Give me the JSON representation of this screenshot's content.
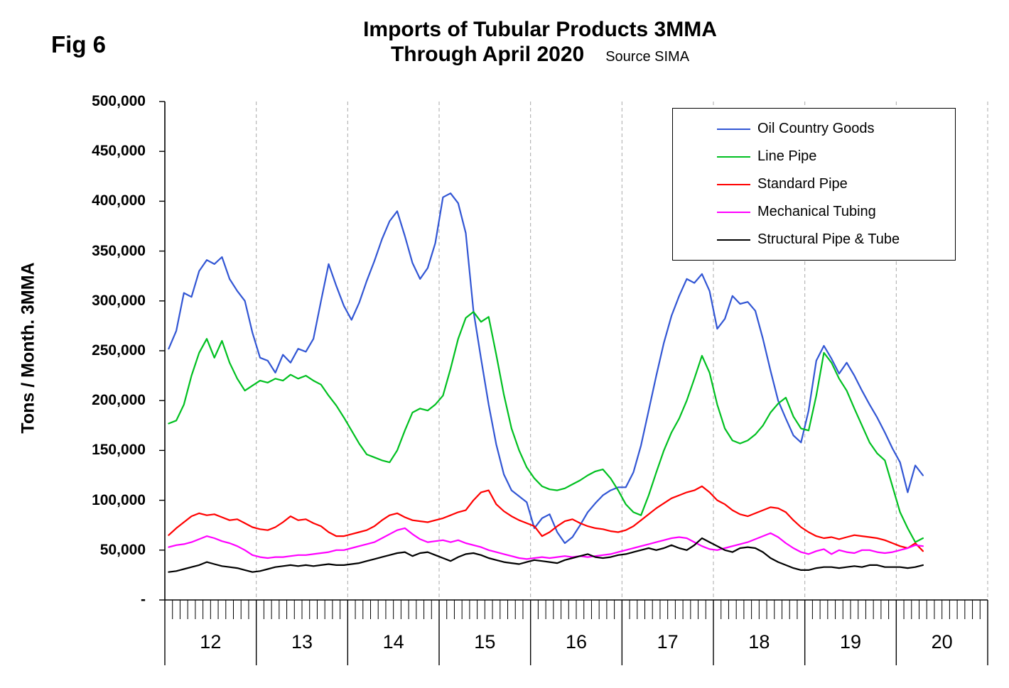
{
  "fig_label": "Fig 6",
  "title": {
    "line1": "Imports of Tubular Products 3MMA",
    "line2": "Through April 2020",
    "source": "Source SIMA"
  },
  "y_axis": {
    "title": "Tons / Month. 3MMA",
    "tick_labels": [
      "500,000",
      "450,000",
      "400,000",
      "350,000",
      "300,000",
      "250,000",
      "200,000",
      "150,000",
      "100,000",
      "50,000",
      "-"
    ]
  },
  "x_axis": {
    "year_labels": [
      "12",
      "13",
      "14",
      "15",
      "16",
      "17",
      "18",
      "19",
      "20"
    ],
    "months_span": 108,
    "data_months": 100
  },
  "legend": {
    "position": "top-right"
  },
  "chart_data": {
    "type": "line",
    "title": "Imports of Tubular Products 3MMA Through April 2020",
    "x_unit": "month",
    "x_start": "2012-01",
    "x_end": "2020-04",
    "ylabel": "Tons / Month. 3MMA",
    "ylim": [
      0,
      500000
    ],
    "grid": "vertical-yearly-dashed",
    "series": [
      {
        "id": "oil-country-goods",
        "name": "Oil Country Goods",
        "color": "#3256D4",
        "values": [
          252000,
          270000,
          308000,
          304000,
          330000,
          341000,
          337000,
          344000,
          322000,
          310000,
          300000,
          268000,
          243000,
          240000,
          228000,
          246000,
          238000,
          252000,
          249000,
          262000,
          300000,
          337000,
          315000,
          295000,
          281000,
          298000,
          320000,
          340000,
          362000,
          380000,
          390000,
          365000,
          338000,
          322000,
          333000,
          358000,
          404000,
          408000,
          398000,
          368000,
          290000,
          242000,
          196000,
          156000,
          126000,
          110000,
          104000,
          98000,
          72000,
          82000,
          86000,
          68000,
          57000,
          63000,
          75000,
          88000,
          97000,
          105000,
          110000,
          113000,
          113000,
          128000,
          155000,
          190000,
          225000,
          258000,
          285000,
          305000,
          322000,
          318000,
          327000,
          310000,
          272000,
          282000,
          305000,
          297000,
          299000,
          290000,
          262000,
          230000,
          200000,
          182000,
          165000,
          158000,
          190000,
          240000,
          255000,
          242000,
          227000,
          238000,
          225000,
          210000,
          196000,
          183000,
          168000,
          152000,
          138000,
          108000,
          135000,
          125000
        ]
      },
      {
        "id": "line-pipe",
        "name": "Line Pipe",
        "color": "#00C020",
        "values": [
          177000,
          180000,
          196000,
          225000,
          248000,
          262000,
          243000,
          260000,
          238000,
          222000,
          210000,
          215000,
          220000,
          218000,
          222000,
          220000,
          226000,
          222000,
          225000,
          220000,
          216000,
          205000,
          195000,
          183000,
          170000,
          157000,
          146000,
          143000,
          140000,
          138000,
          150000,
          170000,
          188000,
          192000,
          190000,
          196000,
          205000,
          232000,
          262000,
          283000,
          289000,
          279000,
          284000,
          246000,
          206000,
          172000,
          150000,
          133000,
          122000,
          114000,
          111000,
          110000,
          112000,
          116000,
          120000,
          125000,
          129000,
          131000,
          122000,
          110000,
          96000,
          88000,
          85000,
          105000,
          128000,
          150000,
          168000,
          182000,
          200000,
          222000,
          245000,
          228000,
          196000,
          172000,
          160000,
          157000,
          160000,
          166000,
          175000,
          188000,
          197000,
          203000,
          184000,
          172000,
          170000,
          205000,
          248000,
          238000,
          222000,
          210000,
          192000,
          175000,
          158000,
          147000,
          140000,
          114000,
          88000,
          72000,
          58000,
          62000
        ]
      },
      {
        "id": "standard-pipe",
        "name": "Standard Pipe",
        "color": "#FF0000",
        "values": [
          65000,
          72000,
          78000,
          84000,
          87000,
          85000,
          86000,
          83000,
          80000,
          81000,
          77000,
          73000,
          71000,
          70000,
          73000,
          78000,
          84000,
          80000,
          81000,
          77000,
          74000,
          68000,
          64000,
          64000,
          66000,
          68000,
          70000,
          74000,
          80000,
          85000,
          87000,
          83000,
          80000,
          79000,
          78000,
          80000,
          82000,
          85000,
          88000,
          90000,
          100000,
          108000,
          110000,
          96000,
          89000,
          84000,
          80000,
          77000,
          74000,
          64000,
          68000,
          74000,
          79000,
          81000,
          77000,
          74000,
          72000,
          71000,
          69000,
          68000,
          70000,
          74000,
          80000,
          86000,
          92000,
          97000,
          102000,
          105000,
          108000,
          110000,
          114000,
          108000,
          100000,
          96000,
          90000,
          86000,
          84000,
          87000,
          90000,
          93000,
          92000,
          88000,
          80000,
          73000,
          68000,
          64000,
          62000,
          63000,
          61000,
          63000,
          65000,
          64000,
          63000,
          62000,
          60000,
          57000,
          54000,
          52000,
          57000,
          49000
        ]
      },
      {
        "id": "mechanical-tubing",
        "name": "Mechanical Tubing",
        "color": "#FF00FF",
        "values": [
          53000,
          55000,
          56000,
          58000,
          61000,
          64000,
          62000,
          59000,
          57000,
          54000,
          50000,
          45000,
          43000,
          42000,
          43000,
          43000,
          44000,
          45000,
          45000,
          46000,
          47000,
          48000,
          50000,
          50000,
          52000,
          54000,
          56000,
          58000,
          62000,
          66000,
          70000,
          72000,
          66000,
          61000,
          58000,
          59000,
          60000,
          58000,
          60000,
          57000,
          55000,
          53000,
          50000,
          48000,
          46000,
          44000,
          42000,
          41000,
          42000,
          43000,
          42000,
          43000,
          44000,
          43000,
          44000,
          43000,
          44000,
          45000,
          46000,
          48000,
          50000,
          52000,
          54000,
          56000,
          58000,
          60000,
          62000,
          63000,
          62000,
          58000,
          54000,
          51000,
          50000,
          52000,
          54000,
          56000,
          58000,
          61000,
          64000,
          67000,
          63000,
          57000,
          52000,
          48000,
          46000,
          49000,
          51000,
          46000,
          50000,
          48000,
          47000,
          50000,
          50000,
          48000,
          47000,
          48000,
          50000,
          52000,
          55000,
          54000
        ]
      },
      {
        "id": "structural-pipe-tube",
        "name": "Structural Pipe & Tube",
        "color": "#000000",
        "values": [
          28000,
          29000,
          31000,
          33000,
          35000,
          38000,
          36000,
          34000,
          33000,
          32000,
          30000,
          28000,
          29000,
          31000,
          33000,
          34000,
          35000,
          34000,
          35000,
          34000,
          35000,
          36000,
          35000,
          35000,
          36000,
          37000,
          39000,
          41000,
          43000,
          45000,
          47000,
          48000,
          44000,
          47000,
          48000,
          45000,
          42000,
          39000,
          43000,
          46000,
          47000,
          45000,
          42000,
          40000,
          38000,
          37000,
          36000,
          38000,
          40000,
          39000,
          38000,
          37000,
          40000,
          42000,
          44000,
          46000,
          43000,
          42000,
          43000,
          45000,
          46000,
          48000,
          50000,
          52000,
          50000,
          52000,
          55000,
          52000,
          50000,
          55000,
          62000,
          58000,
          54000,
          50000,
          48000,
          52000,
          53000,
          52000,
          48000,
          42000,
          38000,
          35000,
          32000,
          30000,
          30000,
          32000,
          33000,
          33000,
          32000,
          33000,
          34000,
          33000,
          35000,
          35000,
          33000,
          33000,
          33000,
          32000,
          33000,
          35000
        ]
      }
    ]
  }
}
